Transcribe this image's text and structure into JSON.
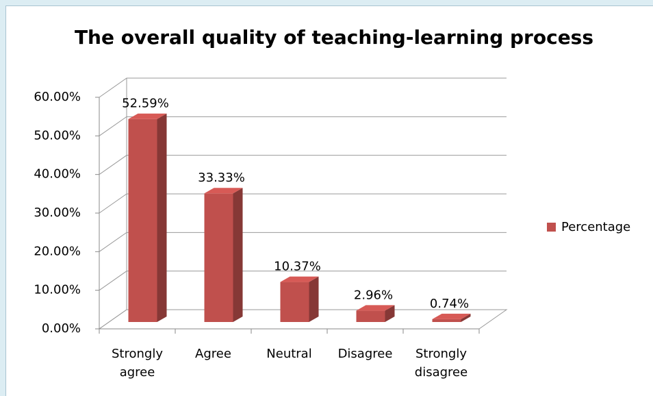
{
  "chart_data": {
    "type": "bar3d",
    "title": "The overall quality of teaching-learning process",
    "categories": [
      "Strongly agree",
      "Agree",
      "Neutral",
      "Disagree",
      "Strongly disagree"
    ],
    "series": [
      {
        "name": "Percentage",
        "color": "#c0504d",
        "values": [
          52.59,
          33.33,
          10.37,
          2.96,
          0.74
        ],
        "value_labels": [
          "52.59%",
          "33.33%",
          "10.37%",
          "2.96%",
          "0.74%"
        ]
      }
    ],
    "ylim": [
      0,
      60
    ],
    "yticks": [
      {
        "value": 0,
        "label": "0.00%"
      },
      {
        "value": 10,
        "label": "10.00%"
      },
      {
        "value": 20,
        "label": "20.00%"
      },
      {
        "value": 30,
        "label": "30.00%"
      },
      {
        "value": 40,
        "label": "40.00%"
      },
      {
        "value": 50,
        "label": "50.00%"
      },
      {
        "value": 60,
        "label": "60.00%"
      }
    ],
    "grid": true,
    "legend": "right"
  }
}
